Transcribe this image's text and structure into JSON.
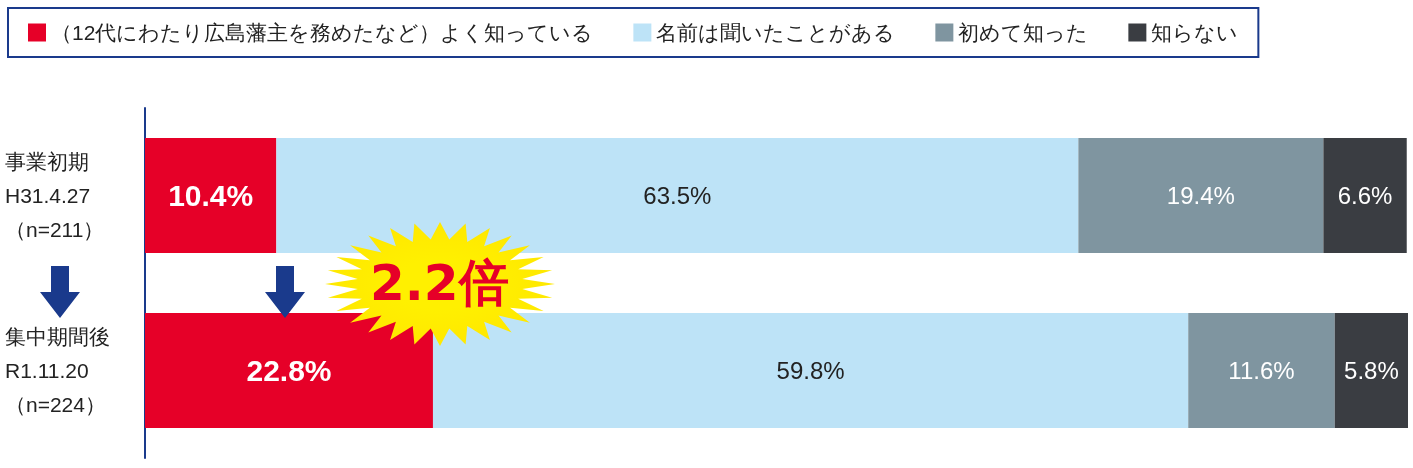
{
  "chart_data": {
    "type": "bar",
    "orientation": "horizontal",
    "stacked": true,
    "legend": "top",
    "categories": [
      "事業初期\nH31.4.27\n（n=211）",
      "集中期間後\nR1.11.20\n（n=224）"
    ],
    "series": [
      {
        "name": "（12代にわたり広島藩主を務めたなど）よく知っている",
        "color": "#e60028",
        "values": [
          10.4,
          22.8
        ],
        "value_labels": [
          "10.4%",
          "22.8%"
        ]
      },
      {
        "name": "名前は聞いたことがある",
        "color": "#bde3f7",
        "values": [
          63.5,
          59.8
        ],
        "value_labels": [
          "63.5%",
          "59.8%"
        ]
      },
      {
        "name": "初めて知った",
        "color": "#7f95a0",
        "values": [
          19.4,
          11.6
        ],
        "value_labels": [
          "19.4%",
          "11.6%"
        ]
      },
      {
        "name": "知らない",
        "color": "#3a3d42",
        "values": [
          6.6,
          5.8
        ],
        "value_labels": [
          "6.6%",
          "5.8%"
        ]
      }
    ],
    "annotations": [
      "2.2倍"
    ]
  }
}
